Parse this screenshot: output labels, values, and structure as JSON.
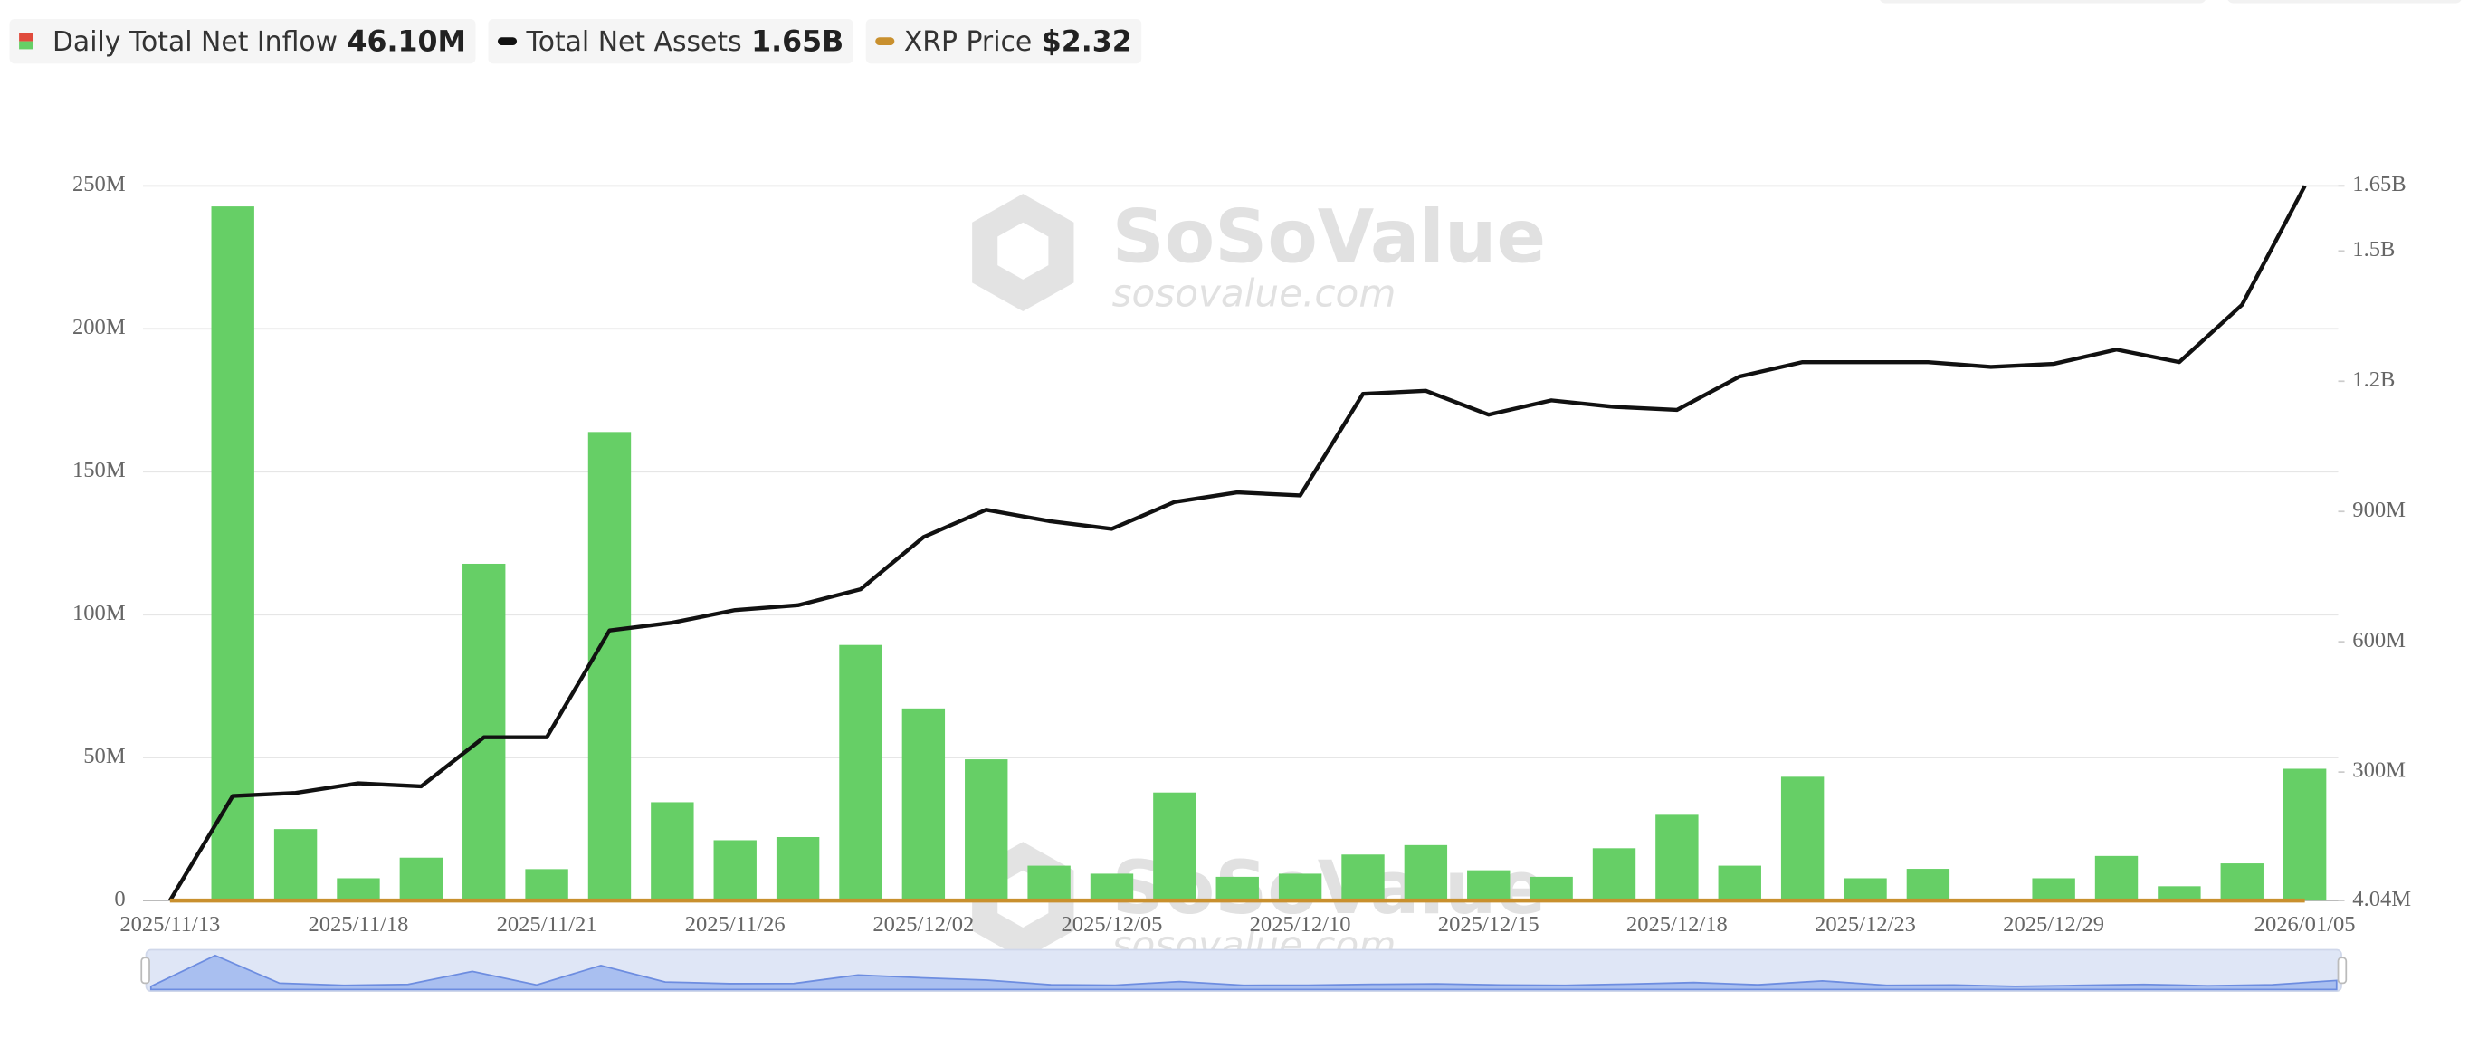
{
  "chart_data": {
    "type": "bar",
    "watermark": {
      "brand": "SoSoValue",
      "site": "sosovalue.com"
    },
    "categories": [
      "2025/11/13",
      null,
      null,
      "2025/11/18",
      null,
      null,
      "2025/11/21",
      null,
      null,
      "2025/11/26",
      null,
      null,
      "2025/12/02",
      null,
      null,
      "2025/12/05",
      null,
      null,
      "2025/12/10",
      null,
      null,
      "2025/12/15",
      null,
      null,
      "2025/12/18",
      null,
      null,
      "2025/12/23",
      null,
      null,
      "2025/12/29",
      null,
      null,
      null,
      "2026/01/05"
    ],
    "series": [
      {
        "name": "Daily Total Net Inflow",
        "type": "bar",
        "color": "#66cf66",
        "latest_label": "46.10M",
        "values": [
          0,
          242.8,
          25,
          7.8,
          15,
          117.8,
          11,
          163.9,
          34.4,
          21.1,
          22.2,
          89.4,
          67.2,
          49.4,
          12.2,
          9.4,
          37.8,
          8.3,
          9.4,
          16.1,
          19.4,
          10.6,
          8.3,
          18.3,
          30,
          12.2,
          43.3,
          7.8,
          11.1,
          0,
          7.8,
          15.6,
          5,
          13,
          46.1
        ]
      },
      {
        "name": "Total Net Assets",
        "type": "line",
        "axis": "y2",
        "color": "#111111",
        "latest_label": "1.65B",
        "values": [
          4.04,
          245,
          252,
          274,
          267,
          380,
          380,
          626,
          644,
          673,
          684,
          721,
          841,
          904,
          878,
          860,
          922,
          944,
          937,
          1171,
          1178,
          1123,
          1156,
          1141,
          1134,
          1211,
          1244,
          1244,
          1244,
          1233,
          1240,
          1273,
          1244,
          1376,
          1650
        ]
      },
      {
        "name": "XRP Price",
        "type": "line",
        "color": "#c9902e",
        "latest_label": "$2.32"
      }
    ],
    "ylim": [
      0,
      250
    ],
    "yticks": [
      {
        "value": 0,
        "label": "0"
      },
      {
        "value": 50,
        "label": "50M"
      },
      {
        "value": 100,
        "label": "100M"
      },
      {
        "value": 150,
        "label": "150M"
      },
      {
        "value": 200,
        "label": "200M"
      },
      {
        "value": 250,
        "label": "250M"
      }
    ],
    "y2lim": [
      4.04,
      1650
    ],
    "y2ticks": [
      {
        "value": 4.04,
        "label": "4.04M"
      },
      {
        "value": 300,
        "label": "300M"
      },
      {
        "value": 600,
        "label": "600M"
      },
      {
        "value": 900,
        "label": "900M"
      },
      {
        "value": 1200,
        "label": "1.2B"
      },
      {
        "value": 1500,
        "label": "1.5B"
      },
      {
        "value": 1650,
        "label": "1.65B"
      }
    ],
    "grid": true
  }
}
